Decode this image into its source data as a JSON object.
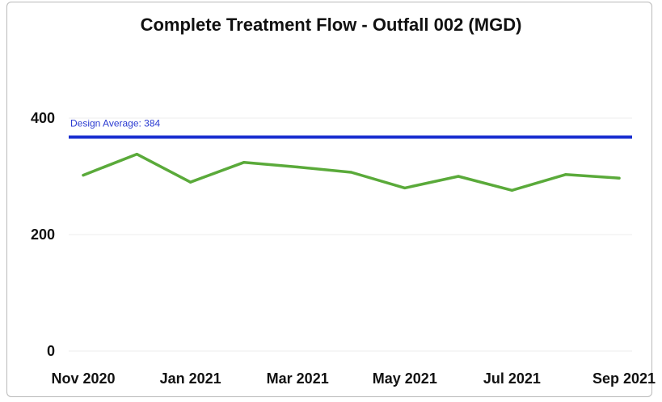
{
  "chart_data": {
    "type": "line",
    "title": "Complete Treatment Flow - Outfall 002 (MGD)",
    "xlabel": "",
    "ylabel": "",
    "x": [
      "Nov 2020",
      "Dec 2020",
      "Jan 2021",
      "Feb 2021",
      "Mar 2021",
      "Apr 2021",
      "May 2021",
      "Jun 2021",
      "Jul 2021",
      "Aug 2021",
      "Sep 2021"
    ],
    "x_tick_labels": [
      "Nov 2020",
      "Jan 2021",
      "Mar 2021",
      "May 2021",
      "Jul 2021",
      "Sep 2021"
    ],
    "y_ticks": [
      0,
      200,
      400
    ],
    "ylim": [
      0,
      400
    ],
    "grid": true,
    "series": [
      {
        "values": [
          302,
          338,
          290,
          324,
          316,
          307,
          280,
          300,
          276,
          303,
          297
        ],
        "color": "#5aaa3a"
      }
    ],
    "reference_line": {
      "label": "Design Average: 384",
      "value": 384,
      "color": "#1a2fd0"
    }
  }
}
